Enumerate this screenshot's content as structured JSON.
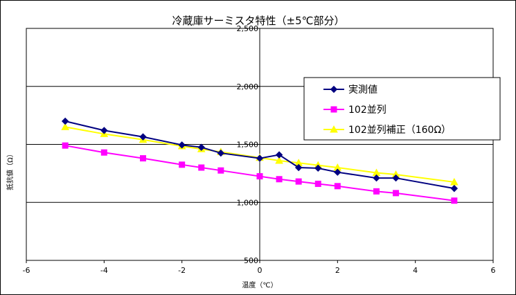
{
  "chart_data": {
    "type": "line",
    "title": "冷蔵庫サーミスタ特性（±5℃部分）",
    "xlabel": "温度（℃）",
    "ylabel": "抵抗値（Ω）",
    "xlim": [
      -6,
      6
    ],
    "ylim": [
      500,
      2500
    ],
    "x_ticks": [
      -6,
      -4,
      -2,
      0,
      2,
      4,
      6
    ],
    "x_tick_labels": [
      "-6",
      "-4",
      "-2",
      "0",
      "2",
      "4",
      "6"
    ],
    "y_ticks": [
      500,
      1000,
      1500,
      2000,
      2500
    ],
    "y_tick_labels": [
      "500",
      "1,000",
      "1,500",
      "2,000",
      "2,500"
    ],
    "grid": true,
    "legend_position": "right",
    "series": [
      {
        "name": "実測値",
        "color": "#000080",
        "marker": "diamond",
        "points": [
          [
            -5,
            1700
          ],
          [
            -4,
            1620
          ],
          [
            -3,
            1565
          ],
          [
            -2,
            1495
          ],
          [
            -1.5,
            1475
          ],
          [
            -1,
            1425
          ],
          [
            0,
            1380
          ],
          [
            0.5,
            1410
          ],
          [
            1,
            1300
          ],
          [
            1.5,
            1295
          ],
          [
            2,
            1260
          ],
          [
            3,
            1210
          ],
          [
            3.5,
            1210
          ],
          [
            5,
            1120
          ]
        ]
      },
      {
        "name": "102並列",
        "color": "#ff00ff",
        "marker": "square",
        "points": [
          [
            -5,
            1490
          ],
          [
            -4,
            1430
          ],
          [
            -3,
            1380
          ],
          [
            -2,
            1325
          ],
          [
            -1.5,
            1300
          ],
          [
            -1,
            1275
          ],
          [
            0,
            1225
          ],
          [
            0.5,
            1200
          ],
          [
            1,
            1180
          ],
          [
            1.5,
            1160
          ],
          [
            2,
            1140
          ],
          [
            3,
            1095
          ],
          [
            3.5,
            1080
          ],
          [
            5,
            1015
          ]
        ]
      },
      {
        "name": "102並列補正（160Ω）",
        "color": "#ffff00",
        "marker": "triangle",
        "points": [
          [
            -5,
            1650
          ],
          [
            -4,
            1590
          ],
          [
            -3,
            1540
          ],
          [
            -2,
            1485
          ],
          [
            -1.5,
            1460
          ],
          [
            -1,
            1435
          ],
          [
            0,
            1385
          ],
          [
            0.5,
            1360
          ],
          [
            1,
            1340
          ],
          [
            1.5,
            1320
          ],
          [
            2,
            1300
          ],
          [
            3,
            1255
          ],
          [
            3.5,
            1240
          ],
          [
            5,
            1175
          ]
        ]
      }
    ]
  }
}
